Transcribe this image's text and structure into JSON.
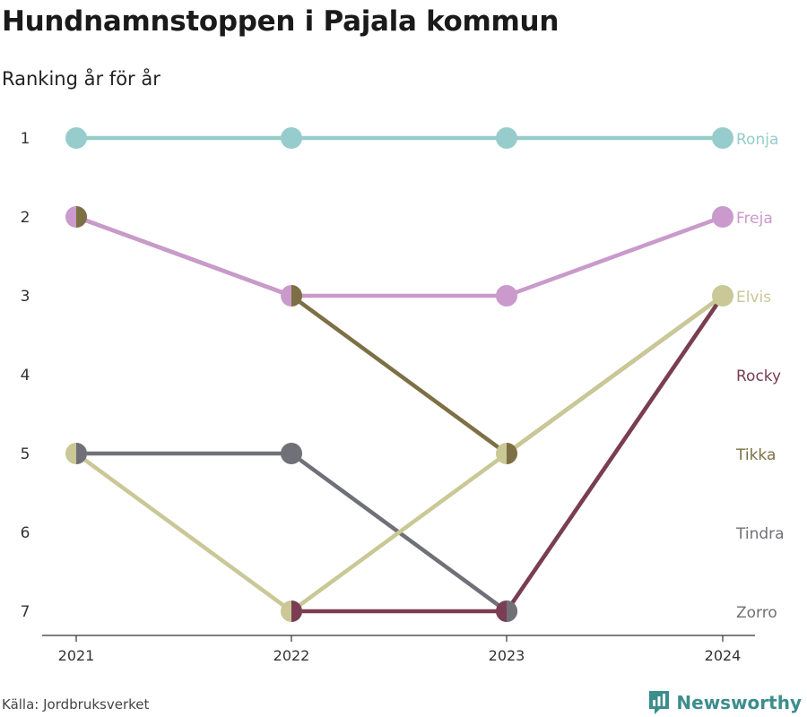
{
  "header": {
    "title": "Hundnamnstoppen i Pajala kommun",
    "subtitle": "Ranking år för år"
  },
  "footer": {
    "source": "Källa: Jordbruksverket",
    "brand": "Newsworthy"
  },
  "colors": {
    "axis": "#333333",
    "tick_text": "#333333"
  },
  "chart_data": {
    "type": "line",
    "subtype": "bump",
    "x": [
      "2021",
      "2022",
      "2023",
      "2024"
    ],
    "y_ticks": [
      "1",
      "2",
      "3",
      "4",
      "5",
      "6",
      "7"
    ],
    "y_reversed": true,
    "ylim": [
      1,
      7
    ],
    "grid": false,
    "legend": "end-labels-right",
    "series": [
      {
        "name": "Zorro",
        "color": "#707075",
        "values": [
          null,
          null,
          null,
          null
        ]
      },
      {
        "name": "Tindra",
        "color": "#707078",
        "values": [
          5,
          5,
          7,
          3
        ]
      },
      {
        "name": "Rocky",
        "color": "#7a3d52",
        "values": [
          null,
          7,
          7,
          3
        ]
      },
      {
        "name": "Tikka",
        "color": "#7d7045",
        "values": [
          2,
          3,
          5,
          3
        ]
      },
      {
        "name": "Elvis",
        "color": "#c9c896",
        "values": [
          5,
          7,
          5,
          3
        ]
      },
      {
        "name": "Freja",
        "color": "#c99acb",
        "values": [
          2,
          3,
          3,
          2
        ]
      },
      {
        "name": "Ronja",
        "color": "#97cccc",
        "values": [
          1,
          1,
          1,
          1
        ]
      }
    ],
    "end_labels": [
      {
        "name": "Ronja",
        "rank": 1,
        "color": "#97cccc"
      },
      {
        "name": "Freja",
        "rank": 2,
        "color": "#c99acb"
      },
      {
        "name": "Elvis",
        "rank": 3,
        "color": "#c9c896"
      },
      {
        "name": "Rocky",
        "rank": 4,
        "color": "#7a3d52"
      },
      {
        "name": "Tikka",
        "rank": 5,
        "color": "#7d7045"
      },
      {
        "name": "Tindra",
        "rank": 6,
        "color": "#707078"
      },
      {
        "name": "Zorro",
        "rank": 7,
        "color": "#707075"
      }
    ]
  }
}
